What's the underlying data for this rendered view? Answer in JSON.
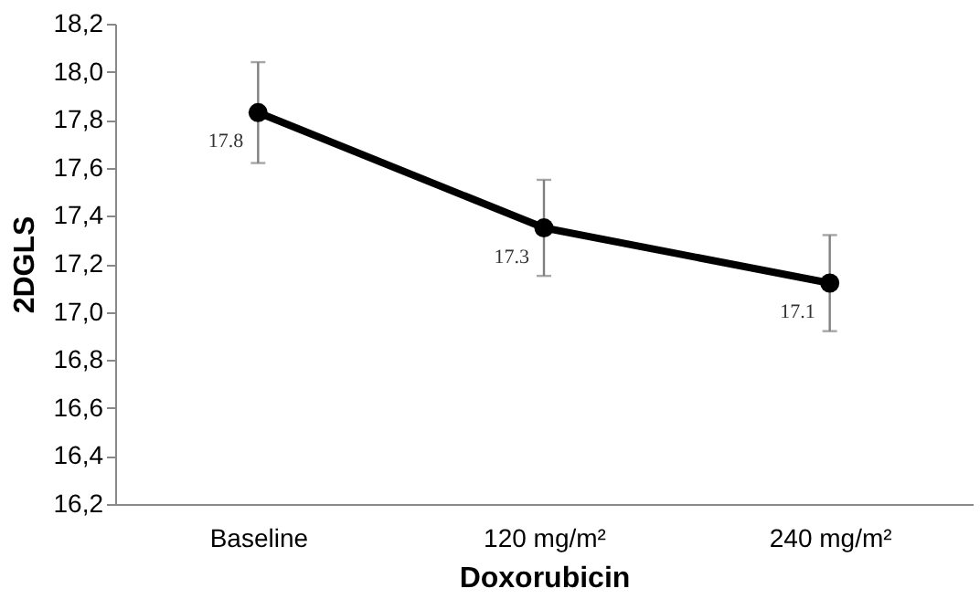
{
  "chart_data": {
    "type": "line",
    "xlabel": "Doxorubicin",
    "ylabel": "2DGLS",
    "categories": [
      "Baseline",
      "120 mg/m²",
      "240 mg/m²"
    ],
    "series": [
      {
        "color": "#000000",
        "values": [
          17.83,
          17.35,
          17.12
        ],
        "errors": [
          [
            17.62,
            18.04
          ],
          [
            17.15,
            17.55
          ],
          [
            16.92,
            17.32
          ]
        ],
        "value_labels": [
          "17.8",
          "17.3",
          "17.1"
        ]
      }
    ],
    "ylim": [
      16.2,
      18.2
    ],
    "yticks": [
      {
        "value": 16.2,
        "label": "16,2"
      },
      {
        "value": 16.4,
        "label": "16,4"
      },
      {
        "value": 16.6,
        "label": "16,6"
      },
      {
        "value": 16.8,
        "label": "16,8"
      },
      {
        "value": 17.0,
        "label": "17,0"
      },
      {
        "value": 17.2,
        "label": "17,2"
      },
      {
        "value": 17.4,
        "label": "17,4"
      },
      {
        "value": 17.6,
        "label": "17,6"
      },
      {
        "value": 17.8,
        "label": "17,8"
      },
      {
        "value": 18.0,
        "label": "18,0"
      },
      {
        "value": 18.2,
        "label": "18,2"
      }
    ],
    "grid": false,
    "marker": "circle",
    "line_style": "solid"
  }
}
